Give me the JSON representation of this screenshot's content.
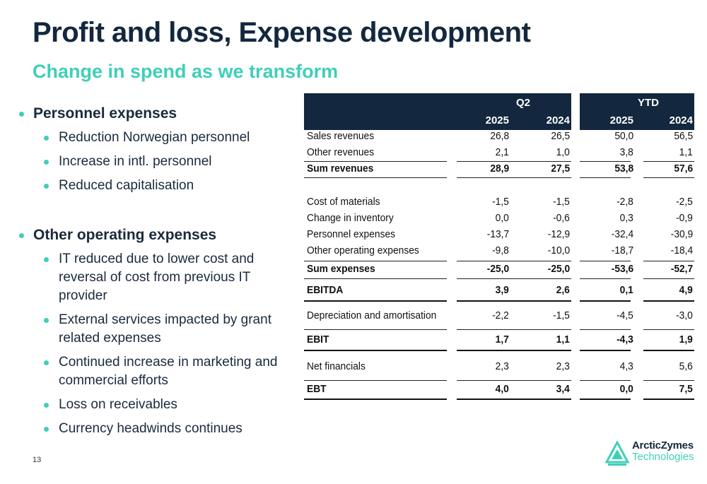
{
  "title": "Profit and loss, Expense development",
  "subtitle": "Change in spend as we transform",
  "bullets": [
    {
      "text": "Personnel expenses",
      "level": 1
    },
    {
      "text": "Reduction Norwegian personnel",
      "level": 2
    },
    {
      "text": "Increase in intl. personnel",
      "level": 2
    },
    {
      "text": "Reduced capitalisation",
      "level": 2
    },
    {
      "text": "",
      "level": 0
    },
    {
      "text": "Other operating expenses",
      "level": 1
    },
    {
      "text": "IT reduced  due to lower cost and reversal of cost from previous IT provider",
      "level": 2
    },
    {
      "text": "External services impacted by grant related expenses",
      "level": 2
    },
    {
      "text": "Continued increase in marketing and commercial efforts",
      "level": 2
    },
    {
      "text": "Loss on receivables",
      "level": 2
    },
    {
      "text": "Currency headwinds continues",
      "level": 2
    }
  ],
  "table": {
    "groups": [
      "Q2",
      "YTD"
    ],
    "years": [
      "2025",
      "2024",
      "2025",
      "2024"
    ],
    "rows": [
      {
        "label": "Sales revenues",
        "values": [
          "26,8",
          "26,5",
          "50,0",
          "56,5"
        ],
        "bold": false
      },
      {
        "label": "Other revenues",
        "values": [
          "2,1",
          "1,0",
          "3,8",
          "1,1"
        ],
        "bold": false
      },
      {
        "label": "Sum revenues",
        "values": [
          "28,9",
          "27,5",
          "53,8",
          "57,6"
        ],
        "bold": true
      },
      {
        "label": "Cost of materials",
        "values": [
          "-1,5",
          "-1,5",
          "-2,8",
          "-2,5"
        ],
        "bold": false
      },
      {
        "label": "Change in inventory",
        "values": [
          "0,0",
          "-0,6",
          "0,3",
          "-0,9"
        ],
        "bold": false
      },
      {
        "label": "Personnel expenses",
        "values": [
          "-13,7",
          "-12,9",
          "-32,4",
          "-30,9"
        ],
        "bold": false
      },
      {
        "label": "Other operating expenses",
        "values": [
          "-9,8",
          "-10,0",
          "-18,7",
          "-18,4"
        ],
        "bold": false
      },
      {
        "label": "Sum expenses",
        "values": [
          "-25,0",
          "-25,0",
          "-53,6",
          "-52,7"
        ],
        "bold": true
      },
      {
        "label": "EBITDA",
        "values": [
          "3,9",
          "2,6",
          "0,1",
          "4,9"
        ],
        "bold": true
      },
      {
        "label": "Depreciation and amortisation",
        "values": [
          "-2,2",
          "-1,5",
          "-4,5",
          "-3,0"
        ],
        "bold": false
      },
      {
        "label": "EBIT",
        "values": [
          "1,7",
          "1,1",
          "-4,3",
          "1,9"
        ],
        "bold": true
      },
      {
        "label": "Net financials",
        "values": [
          "2,3",
          "2,3",
          "4,3",
          "5,6"
        ],
        "bold": false
      },
      {
        "label": "EBT",
        "values": [
          "4,0",
          "3,4",
          "0,0",
          "7,5"
        ],
        "bold": true
      }
    ]
  },
  "page_number": "13",
  "logo": {
    "name": "ArcticZymes",
    "sub": "Technologies",
    "icon": "arcticzymes-logo-icon",
    "color_dark": "#13283e",
    "color_accent": "#3fcfb8"
  }
}
